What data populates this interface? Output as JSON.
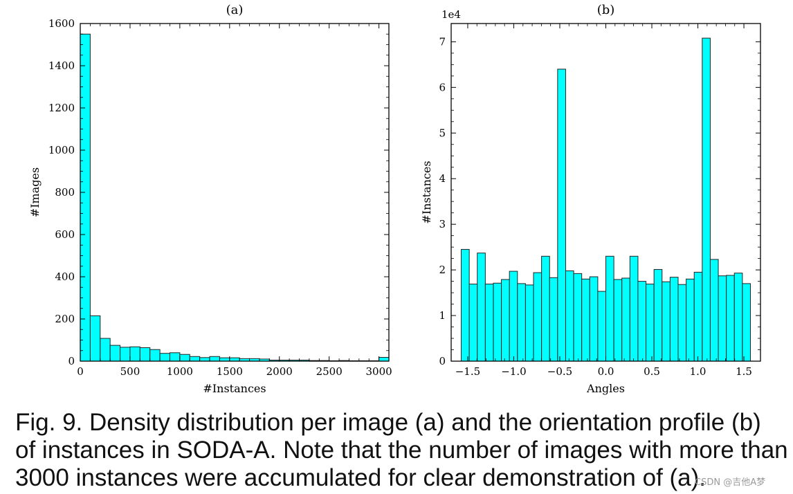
{
  "chart_data": [
    {
      "type": "bar",
      "title": "(a)",
      "xlabel": "#Instances",
      "ylabel": "#Images",
      "xlim": [
        0,
        3100
      ],
      "ylim": [
        0,
        1600
      ],
      "x_ticks": [
        0,
        500,
        1000,
        1500,
        2000,
        2500,
        3000
      ],
      "x_tick_labels": [
        "0",
        "500",
        "1000",
        "1500",
        "2000",
        "2500",
        "3000"
      ],
      "y_ticks": [
        0,
        200,
        400,
        600,
        800,
        1000,
        1200,
        1400,
        1600
      ],
      "y_tick_labels": [
        "0",
        "200",
        "400",
        "600",
        "800",
        "1000",
        "1200",
        "1400",
        "1600"
      ],
      "bin_width": 100,
      "bin_starts": [
        0,
        100,
        200,
        300,
        400,
        500,
        600,
        700,
        800,
        900,
        1000,
        1100,
        1200,
        1300,
        1400,
        1500,
        1600,
        1700,
        1800,
        1900,
        2000,
        2100,
        2200,
        2300,
        2400,
        2500,
        2600,
        2700,
        2800,
        2900,
        3000
      ],
      "values": [
        1550,
        215,
        108,
        75,
        66,
        68,
        64,
        55,
        37,
        40,
        32,
        22,
        17,
        22,
        16,
        16,
        12,
        12,
        10,
        5,
        5,
        5,
        5,
        3,
        3,
        2,
        3,
        2,
        2,
        2,
        18
      ]
    },
    {
      "type": "bar",
      "title": "(b)",
      "xlabel": "Angles",
      "ylabel": "#Instances",
      "offset_label": "1e4",
      "xlim": [
        -1.68,
        1.68
      ],
      "ylim": [
        0,
        7.4
      ],
      "x_ticks": [
        -1.5,
        -1.0,
        -0.5,
        0.0,
        0.5,
        1.0,
        1.5
      ],
      "x_tick_labels": [
        "−1.5",
        "−1.0",
        "−0.5",
        "0.0",
        "0.5",
        "1.0",
        "1.5"
      ],
      "y_ticks": [
        0,
        1,
        2,
        3,
        4,
        5,
        6,
        7
      ],
      "y_tick_labels": [
        "0",
        "1",
        "2",
        "3",
        "4",
        "5",
        "6",
        "7"
      ],
      "bin_range": [
        -1.5708,
        1.5708
      ],
      "values": [
        2.45,
        1.69,
        2.37,
        1.69,
        1.71,
        1.79,
        1.97,
        1.7,
        1.67,
        1.94,
        2.3,
        1.83,
        6.4,
        1.98,
        1.92,
        1.8,
        1.85,
        1.53,
        2.3,
        1.79,
        1.82,
        2.3,
        1.75,
        1.69,
        2.01,
        1.74,
        1.84,
        1.68,
        1.8,
        1.95,
        7.08,
        2.23,
        1.87,
        1.88,
        1.93,
        1.7
      ]
    }
  ],
  "caption": {
    "line1": "Fig. 9. Density distribution per image (a) and the orientation profile (b)",
    "line2": "of instances in SODA-A. Note that the number of images with more than",
    "line3": "3000 instances were accumulated for clear demonstration of (a)."
  },
  "watermark": "CSDN @吉他A梦",
  "colors": {
    "bar_fill": "#00ffff",
    "bar_edge": "#222222",
    "axis": "#000000"
  }
}
